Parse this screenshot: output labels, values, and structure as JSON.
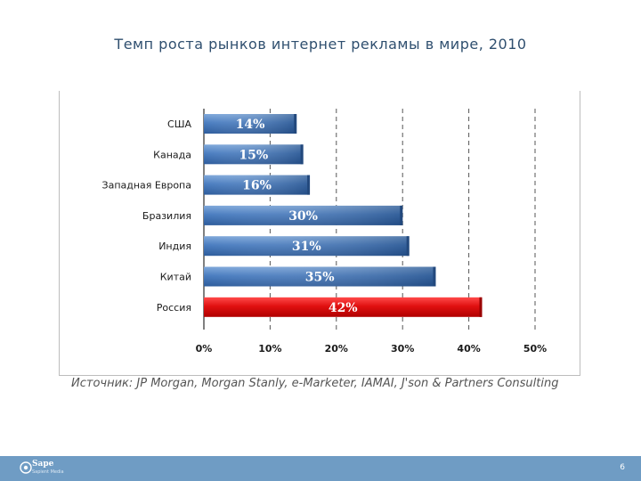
{
  "title": "Темп роста рынков интернет рекламы в мире, 2010",
  "source": "Источник: JP Morgan, Morgan Stanly, e-Marketer, IAMAI, J'son & Partners Consulting",
  "footer": {
    "logo_text": "Sape",
    "logo_sub": "Sapient Media",
    "page_number": "6"
  },
  "colors": {
    "bar_blue": "#4a7dc0",
    "bar_red": "#e01010",
    "title": "#2f4f6f"
  },
  "chart_data": {
    "type": "bar",
    "orientation": "horizontal",
    "title": "Темп роста рынков интернет рекламы в мире, 2010",
    "categories": [
      "США",
      "Канада",
      "Западная Европа",
      "Бразилия",
      "Индия",
      "Китай",
      "Россия"
    ],
    "values": [
      14,
      15,
      16,
      30,
      31,
      35,
      42
    ],
    "value_labels": [
      "14%",
      "15%",
      "16%",
      "30%",
      "31%",
      "35%",
      "42%"
    ],
    "highlight_category": "Россия",
    "xlim": [
      0,
      50
    ],
    "xticks": [
      0,
      10,
      20,
      30,
      40,
      50
    ],
    "xtick_labels": [
      "0%",
      "10%",
      "20%",
      "30%",
      "40%",
      "50%"
    ],
    "grid": "vertical dashed",
    "xlabel": "",
    "ylabel": ""
  }
}
